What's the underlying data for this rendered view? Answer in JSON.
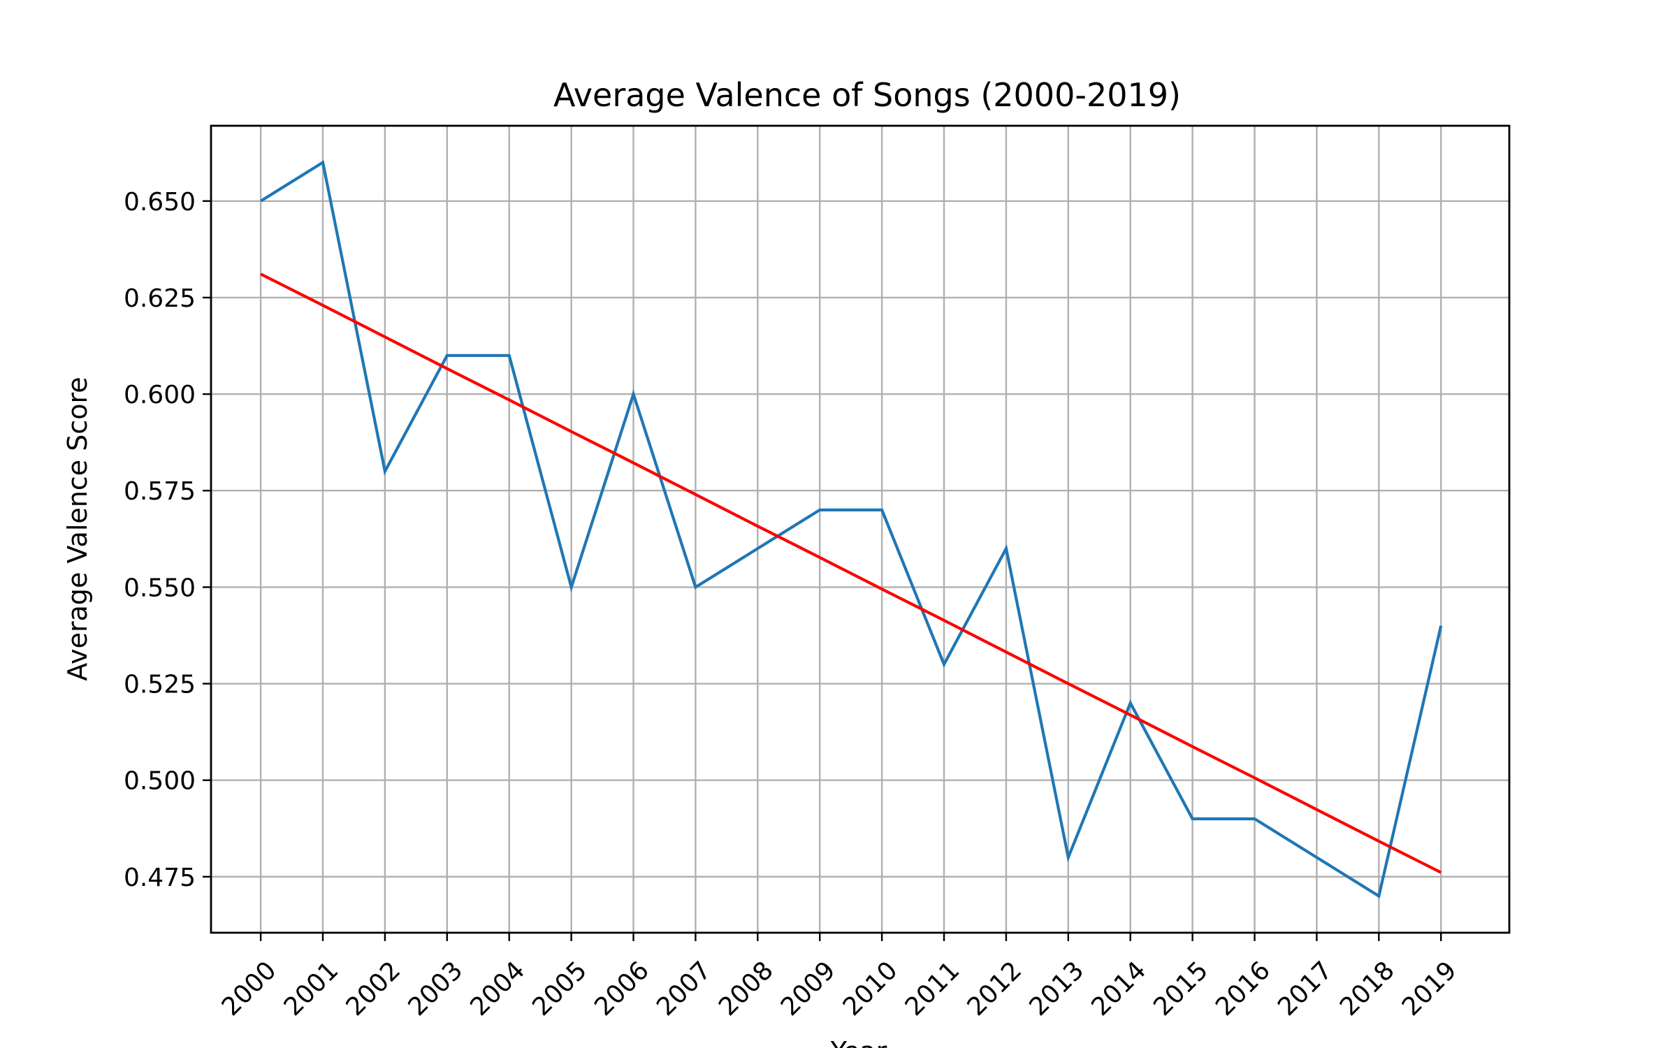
{
  "chart_data": {
    "type": "line",
    "title": "Average Valence of Songs (2000-2019)",
    "xlabel": "Year",
    "ylabel": "Average Valence Score",
    "x": [
      2000,
      2001,
      2002,
      2003,
      2004,
      2005,
      2006,
      2007,
      2008,
      2009,
      2010,
      2011,
      2012,
      2013,
      2014,
      2015,
      2016,
      2017,
      2018,
      2019
    ],
    "x_tick_labels": [
      "2000",
      "2001",
      "2002",
      "2003",
      "2004",
      "2005",
      "2006",
      "2007",
      "2008",
      "2009",
      "2010",
      "2011",
      "2012",
      "2013",
      "2014",
      "2015",
      "2016",
      "2017",
      "2018",
      "2019"
    ],
    "y_ticks": [
      0.475,
      0.5,
      0.525,
      0.55,
      0.575,
      0.6,
      0.625,
      0.65
    ],
    "y_tick_labels": [
      "0.475",
      "0.500",
      "0.525",
      "0.550",
      "0.575",
      "0.600",
      "0.625",
      "0.650"
    ],
    "ylim": [
      0.4605,
      0.6695
    ],
    "xlim": [
      1999.2,
      2020.1
    ],
    "grid": true,
    "series": [
      {
        "values": [
          0.65,
          0.66,
          0.58,
          0.61,
          0.61,
          0.55,
          0.6,
          0.55,
          0.56,
          0.57,
          0.57,
          0.53,
          0.56,
          0.48,
          0.52,
          0.49,
          0.49,
          0.48,
          0.47,
          0.54
        ],
        "color": "#1f77b4"
      },
      {
        "values": [
          0.6311,
          0.623,
          0.6148,
          0.6066,
          0.5985,
          0.5903,
          0.5822,
          0.574,
          0.5658,
          0.5577,
          0.5495,
          0.5414,
          0.5332,
          0.525,
          0.5169,
          0.5087,
          0.5006,
          0.4924,
          0.4842,
          0.4761
        ],
        "color": "#ff0000"
      }
    ]
  }
}
